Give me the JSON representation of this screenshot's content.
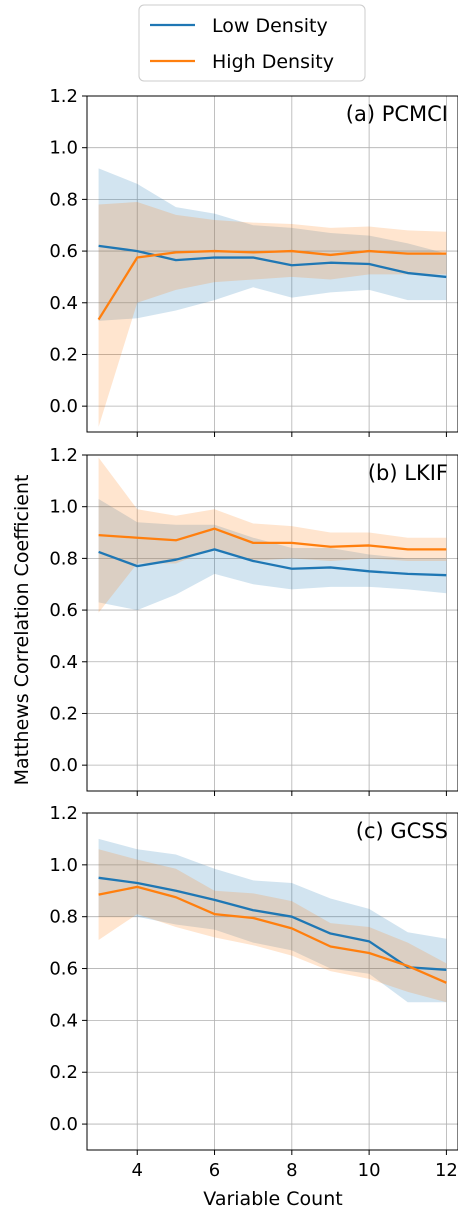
{
  "figure": {
    "ylabel": "Matthews Correlation Coefficient",
    "xlabel": "Variable Count"
  },
  "legend": {
    "placement": "top-center",
    "entries": [
      {
        "name": "Low Density",
        "color": "#1f77b4"
      },
      {
        "name": "High Density",
        "color": "#ff7f0e"
      }
    ]
  },
  "chart_data": [
    {
      "type": "line",
      "title": "(a) PCMCI",
      "x": [
        3,
        4,
        5,
        6,
        7,
        8,
        9,
        10,
        11,
        12
      ],
      "xlim": [
        2.7,
        12.3
      ],
      "ylim": [
        -0.1,
        1.2
      ],
      "xticks": [
        4,
        6,
        8,
        10,
        12
      ],
      "yticks": [
        0.0,
        0.2,
        0.4,
        0.6,
        0.8,
        1.0,
        1.2
      ],
      "grid": true,
      "series": [
        {
          "name": "Low Density",
          "color": "#1f77b4",
          "values": [
            0.62,
            0.6,
            0.565,
            0.575,
            0.575,
            0.545,
            0.555,
            0.55,
            0.515,
            0.5
          ],
          "lower": [
            0.33,
            0.34,
            0.37,
            0.41,
            0.46,
            0.42,
            0.44,
            0.45,
            0.41,
            0.41
          ],
          "upper": [
            0.92,
            0.86,
            0.77,
            0.745,
            0.7,
            0.69,
            0.67,
            0.66,
            0.63,
            0.59
          ]
        },
        {
          "name": "High Density",
          "color": "#ff7f0e",
          "values": [
            0.335,
            0.575,
            0.595,
            0.6,
            0.595,
            0.6,
            0.585,
            0.6,
            0.59,
            0.59
          ],
          "lower": [
            -0.08,
            0.4,
            0.45,
            0.48,
            0.49,
            0.5,
            0.49,
            0.51,
            0.51,
            0.51
          ],
          "upper": [
            0.78,
            0.79,
            0.74,
            0.72,
            0.71,
            0.705,
            0.69,
            0.695,
            0.68,
            0.675
          ]
        }
      ]
    },
    {
      "type": "line",
      "title": "(b) LKIF",
      "x": [
        3,
        4,
        5,
        6,
        7,
        8,
        9,
        10,
        11,
        12
      ],
      "xlim": [
        2.7,
        12.3
      ],
      "ylim": [
        -0.1,
        1.2
      ],
      "xticks": [
        4,
        6,
        8,
        10,
        12
      ],
      "yticks": [
        0.0,
        0.2,
        0.4,
        0.6,
        0.8,
        1.0,
        1.2
      ],
      "grid": true,
      "series": [
        {
          "name": "Low Density",
          "color": "#1f77b4",
          "values": [
            0.825,
            0.77,
            0.795,
            0.835,
            0.79,
            0.76,
            0.765,
            0.75,
            0.74,
            0.735
          ],
          "lower": [
            0.63,
            0.6,
            0.66,
            0.74,
            0.7,
            0.68,
            0.69,
            0.69,
            0.68,
            0.665
          ],
          "upper": [
            1.03,
            0.94,
            0.93,
            0.93,
            0.88,
            0.84,
            0.84,
            0.815,
            0.8,
            0.8
          ]
        },
        {
          "name": "High Density",
          "color": "#ff7f0e",
          "values": [
            0.89,
            0.88,
            0.87,
            0.915,
            0.86,
            0.86,
            0.845,
            0.85,
            0.835,
            0.835
          ],
          "lower": [
            0.59,
            0.78,
            0.78,
            0.84,
            0.79,
            0.8,
            0.79,
            0.8,
            0.79,
            0.79
          ],
          "upper": [
            1.19,
            0.99,
            0.965,
            0.99,
            0.935,
            0.925,
            0.9,
            0.9,
            0.88,
            0.88
          ]
        }
      ]
    },
    {
      "type": "line",
      "title": "(c) GCSS",
      "x": [
        3,
        4,
        5,
        6,
        7,
        8,
        9,
        10,
        11,
        12
      ],
      "xlim": [
        2.7,
        12.3
      ],
      "ylim": [
        -0.1,
        1.2
      ],
      "xticks": [
        4,
        6,
        8,
        10,
        12
      ],
      "yticks": [
        0.0,
        0.2,
        0.4,
        0.6,
        0.8,
        1.0,
        1.2
      ],
      "grid": true,
      "series": [
        {
          "name": "Low Density",
          "color": "#1f77b4",
          "values": [
            0.95,
            0.93,
            0.9,
            0.865,
            0.825,
            0.8,
            0.735,
            0.705,
            0.605,
            0.595
          ],
          "lower": [
            0.8,
            0.8,
            0.77,
            0.75,
            0.7,
            0.67,
            0.6,
            0.58,
            0.47,
            0.47
          ],
          "upper": [
            1.1,
            1.06,
            1.04,
            0.985,
            0.94,
            0.93,
            0.87,
            0.83,
            0.74,
            0.715
          ]
        },
        {
          "name": "High Density",
          "color": "#ff7f0e",
          "values": [
            0.885,
            0.915,
            0.875,
            0.81,
            0.795,
            0.755,
            0.685,
            0.66,
            0.61,
            0.545
          ],
          "lower": [
            0.71,
            0.81,
            0.76,
            0.72,
            0.69,
            0.65,
            0.59,
            0.56,
            0.51,
            0.47
          ],
          "upper": [
            1.06,
            1.02,
            0.985,
            0.9,
            0.89,
            0.86,
            0.775,
            0.76,
            0.7,
            0.62
          ]
        }
      ]
    }
  ]
}
